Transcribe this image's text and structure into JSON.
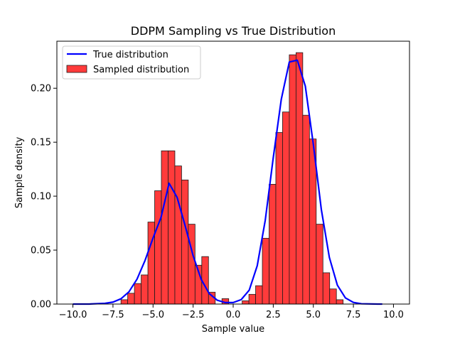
{
  "chart_data": {
    "type": "bar",
    "title": "DDPM Sampling vs True Distribution",
    "xlabel": "Sample value",
    "ylabel": "Sample density",
    "xlim": [
      -11.0,
      11.0
    ],
    "ylim": [
      0.0,
      0.2436
    ],
    "x_ticks": [
      -10.0,
      -7.5,
      -5.0,
      -2.5,
      0.0,
      2.5,
      5.0,
      7.5,
      10.0
    ],
    "x_tick_labels": [
      "−10.0",
      "−7.5",
      "−5.0",
      "−2.5",
      "0.0",
      "2.5",
      "5.0",
      "7.5",
      "10.0"
    ],
    "y_ticks": [
      0.0,
      0.05,
      0.1,
      0.15,
      0.2
    ],
    "y_tick_labels": [
      "0.00",
      "0.05",
      "0.10",
      "0.15",
      "0.20"
    ],
    "grid": false,
    "legend_position": "top-left",
    "legend": [
      {
        "label": "True distribution",
        "kind": "line",
        "color": "#0000ff"
      },
      {
        "label": "Sampled distribution",
        "kind": "patch",
        "color": "#ff3b3b"
      }
    ],
    "histogram": {
      "name": "Sampled distribution",
      "color": "#ff3b3b",
      "edge_color": "#1a1a1a",
      "bin_width": 0.42,
      "bins": [
        {
          "x0": -7.0,
          "value": 0.004
        },
        {
          "x0": -6.58,
          "value": 0.01
        },
        {
          "x0": -6.16,
          "value": 0.019
        },
        {
          "x0": -5.74,
          "value": 0.027
        },
        {
          "x0": -5.32,
          "value": 0.076
        },
        {
          "x0": -4.9,
          "value": 0.105
        },
        {
          "x0": -4.48,
          "value": 0.142
        },
        {
          "x0": -4.06,
          "value": 0.142
        },
        {
          "x0": -3.64,
          "value": 0.128
        },
        {
          "x0": -3.22,
          "value": 0.115
        },
        {
          "x0": -2.8,
          "value": 0.074
        },
        {
          "x0": -2.38,
          "value": 0.036
        },
        {
          "x0": -1.96,
          "value": 0.044
        },
        {
          "x0": -1.54,
          "value": 0.011
        },
        {
          "x0": -1.12,
          "value": 0.0
        },
        {
          "x0": -0.7,
          "value": 0.005
        },
        {
          "x0": -0.28,
          "value": 0.0
        },
        {
          "x0": 0.14,
          "value": 0.0
        },
        {
          "x0": 0.56,
          "value": 0.003
        },
        {
          "x0": 0.98,
          "value": 0.009
        },
        {
          "x0": 1.4,
          "value": 0.017
        },
        {
          "x0": 1.82,
          "value": 0.061
        },
        {
          "x0": 2.24,
          "value": 0.111
        },
        {
          "x0": 2.66,
          "value": 0.159
        },
        {
          "x0": 3.08,
          "value": 0.178
        },
        {
          "x0": 3.5,
          "value": 0.231
        },
        {
          "x0": 3.92,
          "value": 0.233
        },
        {
          "x0": 4.34,
          "value": 0.175
        },
        {
          "x0": 4.76,
          "value": 0.153
        },
        {
          "x0": 5.18,
          "value": 0.074
        },
        {
          "x0": 5.6,
          "value": 0.029
        },
        {
          "x0": 6.02,
          "value": 0.014
        },
        {
          "x0": 6.44,
          "value": 0.004
        },
        {
          "x0": 6.86,
          "value": 0.0
        }
      ]
    },
    "line_series": {
      "name": "True distribution",
      "color": "#0000ff",
      "x": [
        -10.0,
        -9.0,
        -8.0,
        -7.5,
        -7.0,
        -6.5,
        -6.0,
        -5.5,
        -5.0,
        -4.5,
        -4.0,
        -3.5,
        -3.0,
        -2.5,
        -2.0,
        -1.5,
        -1.0,
        -0.5,
        0.0,
        0.5,
        1.0,
        1.5,
        2.0,
        2.5,
        3.0,
        3.5,
        4.0,
        4.5,
        5.0,
        5.5,
        6.0,
        6.5,
        7.0,
        7.5,
        8.0,
        9.0,
        9.3
      ],
      "y": [
        0.0,
        0.0,
        0.0007,
        0.0018,
        0.0049,
        0.0114,
        0.0231,
        0.0404,
        0.0612,
        0.0804,
        0.112,
        0.0989,
        0.0728,
        0.0448,
        0.023,
        0.0098,
        0.0036,
        0.0014,
        0.0014,
        0.0041,
        0.0129,
        0.0355,
        0.0776,
        0.1356,
        0.1897,
        0.2243,
        0.226,
        0.202,
        0.148,
        0.0875,
        0.0432,
        0.0175,
        0.0057,
        0.0015,
        0.0003,
        0.0,
        0.0
      ]
    }
  }
}
